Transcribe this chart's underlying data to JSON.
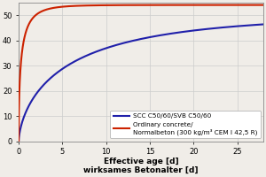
{
  "xlabel_en": "Effective age [d]",
  "xlabel_de": "wirksames Betonalter [d]",
  "xlim": [
    0,
    28
  ],
  "ylim": [
    0,
    55
  ],
  "yticks": [
    0,
    10,
    20,
    30,
    40,
    50
  ],
  "xticks": [
    0,
    5,
    10,
    15,
    20,
    25
  ],
  "scc_color": "#2020aa",
  "ordinary_color": "#cc2200",
  "legend_scc": "SCC C50/60/SVB C50/60",
  "legend_ordinary": "Ordinary concrete/\nNormalbeton (300 kg/m³ CEM I 42,5 R)",
  "bg_color": "#f0ede8",
  "scc_a": 50.0,
  "scc_b": 0.3,
  "scc_c": 0.65,
  "ord_a": 54.0,
  "ord_b": 1.8,
  "ord_c": 0.55,
  "linewidth": 1.5,
  "tick_fontsize": 6.0,
  "label_fontsize": 6.5,
  "legend_fontsize": 5.2
}
